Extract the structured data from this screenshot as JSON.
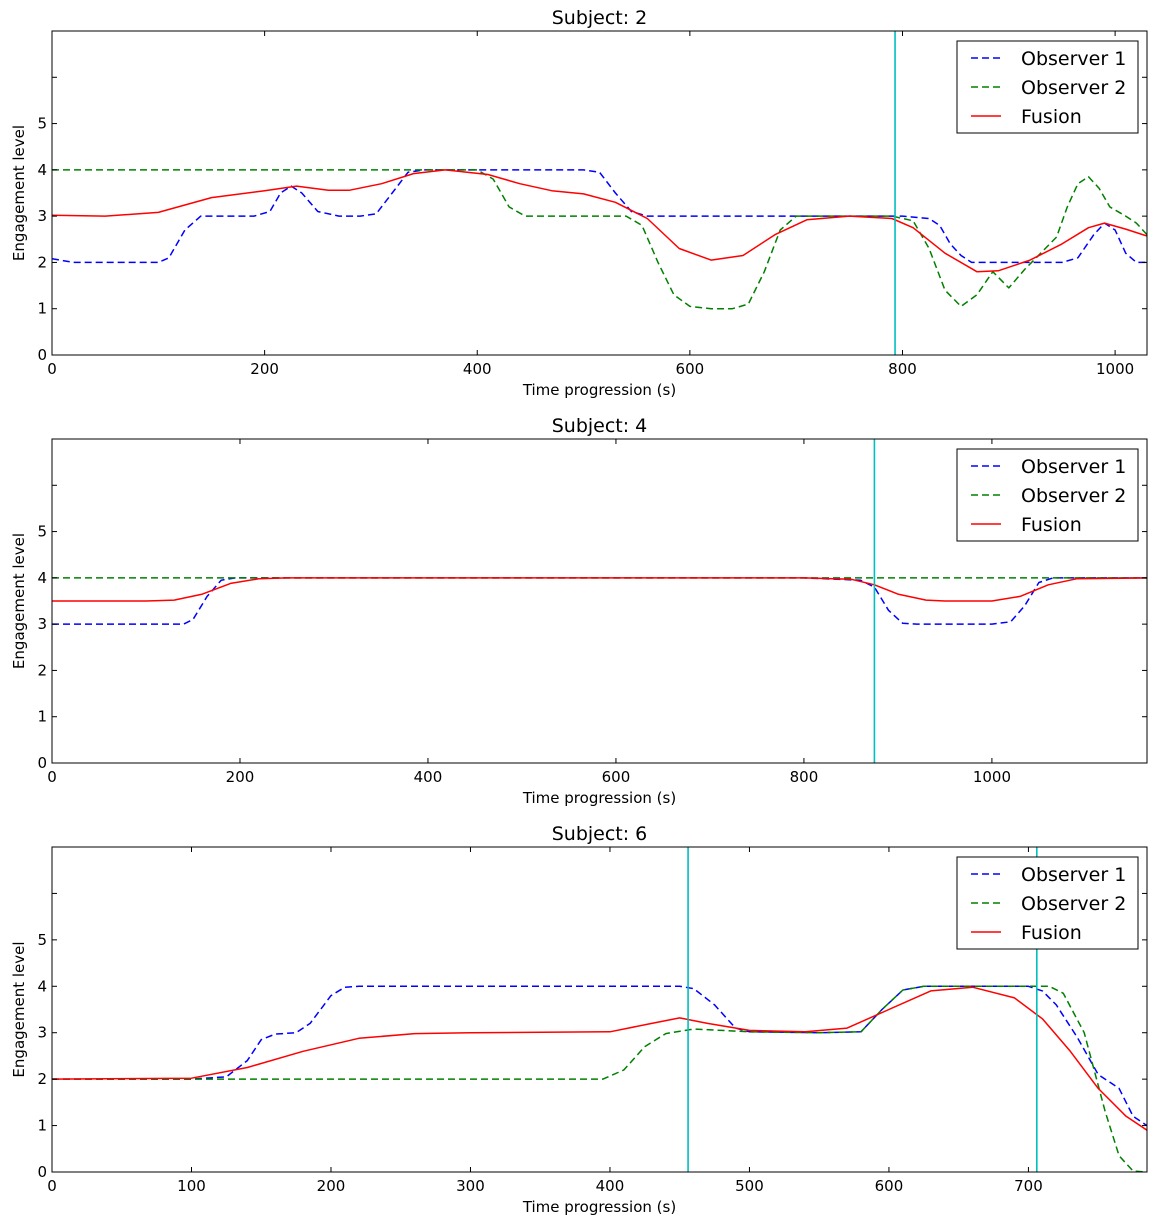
{
  "chart_data": [
    {
      "type": "line",
      "title": "Subject: 2",
      "xlabel": "Time progression (s)",
      "ylabel": "Engagement level",
      "xlim": [
        0,
        1030
      ],
      "ylim": [
        0,
        7
      ],
      "xticks": [
        0,
        200,
        400,
        600,
        800,
        1000
      ],
      "yticks": [
        0,
        1,
        2,
        3,
        4,
        5
      ],
      "grid": false,
      "legend_position": "top-right",
      "vlines": [
        793
      ],
      "series": [
        {
          "name": "Observer 1",
          "color": "#0000ff",
          "dashed": true,
          "points": [
            [
              0,
              2.08
            ],
            [
              20,
              2.0
            ],
            [
              60,
              2.0
            ],
            [
              100,
              2.0
            ],
            [
              110,
              2.1
            ],
            [
              125,
              2.7
            ],
            [
              140,
              3.0
            ],
            [
              160,
              3.0
            ],
            [
              190,
              3.0
            ],
            [
              205,
              3.1
            ],
            [
              215,
              3.5
            ],
            [
              225,
              3.65
            ],
            [
              235,
              3.5
            ],
            [
              250,
              3.1
            ],
            [
              270,
              3.0
            ],
            [
              290,
              3.0
            ],
            [
              305,
              3.05
            ],
            [
              320,
              3.5
            ],
            [
              335,
              3.95
            ],
            [
              350,
              4.0
            ],
            [
              400,
              4.0
            ],
            [
              450,
              4.0
            ],
            [
              500,
              4.0
            ],
            [
              515,
              3.95
            ],
            [
              530,
              3.5
            ],
            [
              545,
              3.1
            ],
            [
              560,
              3.0
            ],
            [
              600,
              3.0
            ],
            [
              650,
              3.0
            ],
            [
              700,
              3.0
            ],
            [
              750,
              3.0
            ],
            [
              800,
              3.0
            ],
            [
              825,
              2.95
            ],
            [
              835,
              2.8
            ],
            [
              845,
              2.4
            ],
            [
              855,
              2.15
            ],
            [
              865,
              2.0
            ],
            [
              900,
              2.0
            ],
            [
              950,
              2.0
            ],
            [
              965,
              2.1
            ],
            [
              980,
              2.6
            ],
            [
              990,
              2.85
            ],
            [
              1000,
              2.7
            ],
            [
              1010,
              2.2
            ],
            [
              1020,
              2.0
            ],
            [
              1030,
              2.0
            ]
          ]
        },
        {
          "name": "Observer 2",
          "color": "#008000",
          "dashed": true,
          "points": [
            [
              0,
              4.0
            ],
            [
              100,
              4.0
            ],
            [
              200,
              4.0
            ],
            [
              300,
              4.0
            ],
            [
              400,
              4.0
            ],
            [
              415,
              3.8
            ],
            [
              430,
              3.2
            ],
            [
              445,
              3.0
            ],
            [
              500,
              3.0
            ],
            [
              540,
              3.0
            ],
            [
              555,
              2.8
            ],
            [
              570,
              2.0
            ],
            [
              585,
              1.3
            ],
            [
              600,
              1.05
            ],
            [
              620,
              1.0
            ],
            [
              640,
              1.0
            ],
            [
              655,
              1.1
            ],
            [
              670,
              1.8
            ],
            [
              685,
              2.7
            ],
            [
              700,
              3.0
            ],
            [
              750,
              3.0
            ],
            [
              790,
              3.0
            ],
            [
              810,
              2.9
            ],
            [
              825,
              2.3
            ],
            [
              840,
              1.4
            ],
            [
              855,
              1.05
            ],
            [
              870,
              1.3
            ],
            [
              885,
              1.8
            ],
            [
              900,
              1.45
            ],
            [
              915,
              1.85
            ],
            [
              930,
              2.2
            ],
            [
              945,
              2.55
            ],
            [
              955,
              3.2
            ],
            [
              965,
              3.7
            ],
            [
              975,
              3.85
            ],
            [
              985,
              3.6
            ],
            [
              995,
              3.2
            ],
            [
              1010,
              3.0
            ],
            [
              1020,
              2.85
            ],
            [
              1030,
              2.6
            ]
          ]
        },
        {
          "name": "Fusion",
          "color": "#ff0000",
          "dashed": false,
          "points": [
            [
              0,
              3.02
            ],
            [
              50,
              3.0
            ],
            [
              100,
              3.08
            ],
            [
              150,
              3.4
            ],
            [
              200,
              3.55
            ],
            [
              230,
              3.65
            ],
            [
              260,
              3.56
            ],
            [
              280,
              3.56
            ],
            [
              310,
              3.7
            ],
            [
              340,
              3.92
            ],
            [
              370,
              4.0
            ],
            [
              410,
              3.9
            ],
            [
              440,
              3.7
            ],
            [
              470,
              3.55
            ],
            [
              500,
              3.48
            ],
            [
              530,
              3.3
            ],
            [
              560,
              2.95
            ],
            [
              590,
              2.3
            ],
            [
              620,
              2.05
            ],
            [
              650,
              2.15
            ],
            [
              680,
              2.6
            ],
            [
              710,
              2.92
            ],
            [
              750,
              3.0
            ],
            [
              790,
              2.95
            ],
            [
              810,
              2.75
            ],
            [
              840,
              2.2
            ],
            [
              870,
              1.8
            ],
            [
              890,
              1.82
            ],
            [
              920,
              2.05
            ],
            [
              950,
              2.4
            ],
            [
              975,
              2.75
            ],
            [
              990,
              2.85
            ],
            [
              1010,
              2.72
            ],
            [
              1030,
              2.57
            ]
          ]
        }
      ]
    },
    {
      "type": "line",
      "title": "Subject: 4",
      "xlabel": "Time progression (s)",
      "ylabel": "Engagement level",
      "xlim": [
        0,
        1165
      ],
      "ylim": [
        0,
        7
      ],
      "xticks": [
        0,
        200,
        400,
        600,
        800,
        1000
      ],
      "yticks": [
        0,
        1,
        2,
        3,
        4,
        5
      ],
      "grid": false,
      "legend_position": "top-right",
      "vlines": [
        875
      ],
      "series": [
        {
          "name": "Observer 1",
          "color": "#0000ff",
          "dashed": true,
          "points": [
            [
              0,
              3.0
            ],
            [
              100,
              3.0
            ],
            [
              140,
              3.0
            ],
            [
              150,
              3.1
            ],
            [
              165,
              3.6
            ],
            [
              180,
              3.95
            ],
            [
              195,
              4.0
            ],
            [
              400,
              4.0
            ],
            [
              600,
              4.0
            ],
            [
              800,
              4.0
            ],
            [
              860,
              3.95
            ],
            [
              875,
              3.8
            ],
            [
              890,
              3.3
            ],
            [
              905,
              3.02
            ],
            [
              920,
              3.0
            ],
            [
              1000,
              3.0
            ],
            [
              1020,
              3.05
            ],
            [
              1035,
              3.4
            ],
            [
              1050,
              3.9
            ],
            [
              1065,
              4.0
            ],
            [
              1165,
              4.0
            ]
          ]
        },
        {
          "name": "Observer 2",
          "color": "#008000",
          "dashed": true,
          "points": [
            [
              0,
              4.0
            ],
            [
              1165,
              4.0
            ]
          ]
        },
        {
          "name": "Fusion",
          "color": "#ff0000",
          "dashed": false,
          "points": [
            [
              0,
              3.5
            ],
            [
              100,
              3.5
            ],
            [
              130,
              3.52
            ],
            [
              160,
              3.65
            ],
            [
              190,
              3.88
            ],
            [
              220,
              3.98
            ],
            [
              250,
              4.0
            ],
            [
              800,
              4.0
            ],
            [
              850,
              3.97
            ],
            [
              875,
              3.85
            ],
            [
              900,
              3.65
            ],
            [
              930,
              3.52
            ],
            [
              950,
              3.5
            ],
            [
              1000,
              3.5
            ],
            [
              1030,
              3.6
            ],
            [
              1060,
              3.85
            ],
            [
              1090,
              3.98
            ],
            [
              1165,
              4.0
            ]
          ]
        }
      ]
    },
    {
      "type": "line",
      "title": "Subject: 6",
      "xlabel": "Time progression (s)",
      "ylabel": "Engagement level",
      "xlim": [
        0,
        785
      ],
      "ylim": [
        0,
        7
      ],
      "xticks": [
        0,
        100,
        200,
        300,
        400,
        500,
        600,
        700
      ],
      "yticks": [
        0,
        1,
        2,
        3,
        4,
        5
      ],
      "grid": false,
      "legend_position": "top-right",
      "vlines": [
        456,
        706
      ],
      "series": [
        {
          "name": "Observer 1",
          "color": "#0000ff",
          "dashed": true,
          "points": [
            [
              0,
              2.0
            ],
            [
              100,
              2.0
            ],
            [
              125,
              2.05
            ],
            [
              140,
              2.4
            ],
            [
              150,
              2.85
            ],
            [
              160,
              2.97
            ],
            [
              175,
              3.0
            ],
            [
              185,
              3.2
            ],
            [
              200,
              3.8
            ],
            [
              210,
              3.98
            ],
            [
              220,
              4.0
            ],
            [
              300,
              4.0
            ],
            [
              400,
              4.0
            ],
            [
              450,
              4.0
            ],
            [
              460,
              3.95
            ],
            [
              475,
              3.6
            ],
            [
              490,
              3.1
            ],
            [
              500,
              3.02
            ],
            [
              550,
              3.0
            ],
            [
              580,
              3.02
            ],
            [
              595,
              3.5
            ],
            [
              610,
              3.92
            ],
            [
              625,
              4.0
            ],
            [
              700,
              4.0
            ],
            [
              710,
              3.9
            ],
            [
              720,
              3.6
            ],
            [
              735,
              2.9
            ],
            [
              750,
              2.1
            ],
            [
              765,
              1.8
            ],
            [
              775,
              1.2
            ],
            [
              785,
              1.0
            ]
          ]
        },
        {
          "name": "Observer 2",
          "color": "#008000",
          "dashed": true,
          "points": [
            [
              0,
              2.0
            ],
            [
              300,
              2.0
            ],
            [
              395,
              2.0
            ],
            [
              410,
              2.2
            ],
            [
              425,
              2.7
            ],
            [
              440,
              2.98
            ],
            [
              460,
              3.08
            ],
            [
              500,
              3.02
            ],
            [
              550,
              3.0
            ],
            [
              580,
              3.02
            ],
            [
              595,
              3.5
            ],
            [
              610,
              3.92
            ],
            [
              625,
              4.0
            ],
            [
              715,
              4.0
            ],
            [
              725,
              3.85
            ],
            [
              740,
              3.0
            ],
            [
              755,
              1.3
            ],
            [
              765,
              0.35
            ],
            [
              775,
              0.02
            ],
            [
              785,
              0.0
            ]
          ]
        },
        {
          "name": "Fusion",
          "color": "#ff0000",
          "dashed": false,
          "points": [
            [
              0,
              2.0
            ],
            [
              100,
              2.02
            ],
            [
              140,
              2.25
            ],
            [
              180,
              2.6
            ],
            [
              220,
              2.88
            ],
            [
              260,
              2.98
            ],
            [
              300,
              3.0
            ],
            [
              400,
              3.02
            ],
            [
              430,
              3.2
            ],
            [
              450,
              3.32
            ],
            [
              470,
              3.2
            ],
            [
              500,
              3.05
            ],
            [
              540,
              3.02
            ],
            [
              570,
              3.1
            ],
            [
              600,
              3.5
            ],
            [
              630,
              3.9
            ],
            [
              660,
              3.98
            ],
            [
              690,
              3.75
            ],
            [
              710,
              3.3
            ],
            [
              730,
              2.6
            ],
            [
              750,
              1.8
            ],
            [
              770,
              1.2
            ],
            [
              785,
              0.9
            ]
          ]
        }
      ]
    }
  ]
}
